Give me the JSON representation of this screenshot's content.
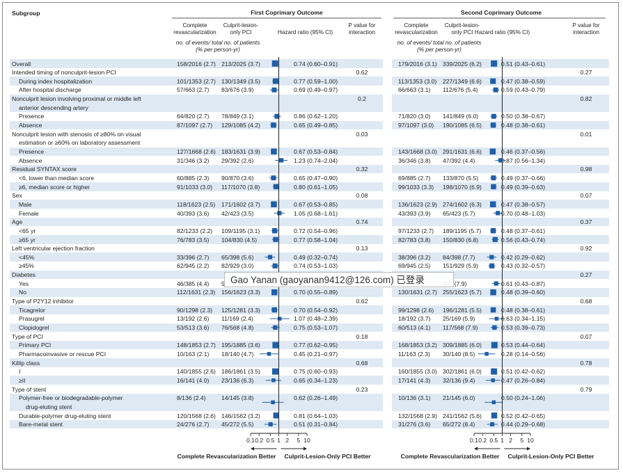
{
  "headers": {
    "subgroup": "Subgroup",
    "first_title": "First Coprimary Outcome",
    "second_title": "Second Coprimary Outcome",
    "complete_rev": [
      "Complete",
      "revascularization"
    ],
    "culprit_only": [
      "Culprit-lesion-",
      "only PCI"
    ],
    "hazard_ratio": "Hazard ratio (95% CI)",
    "pvalue": [
      "P value for",
      "interaction"
    ],
    "events_note": [
      "no. of events/ total no. of patients",
      "(% per person-yr)"
    ]
  },
  "axis": {
    "ticks": [
      0.1,
      0.2,
      0.5,
      1,
      2,
      5,
      10
    ],
    "tick_labels": [
      "0.1",
      "0.2",
      "0.5",
      "1",
      "2",
      "5",
      "10"
    ],
    "left_label": "Complete Revascularization Better",
    "right_label": "Culprit-Lesion-Only PCI Better"
  },
  "rows": [
    {
      "label": [
        "Overall"
      ],
      "indent": false,
      "shaded": true,
      "first": {
        "cr": "158/2016 (2.7)",
        "co": "213/2025 (3.7)",
        "hr": "0.74 (0.60–0.91)",
        "est": 0.74,
        "lo": 0.6,
        "hi": 0.91,
        "w": 1
      },
      "second": {
        "cr": "179/2016 (3.1)",
        "co": "339/2025 (6.2)",
        "hr": "0.51 (0.43–0.61)",
        "est": 0.51,
        "lo": 0.43,
        "hi": 0.61,
        "w": 1
      }
    },
    {
      "label": [
        "Intended timing of nonculprit-lesion PCI"
      ],
      "indent": false,
      "shaded": false,
      "p1": "0.62",
      "p2": "0.27"
    },
    {
      "label": [
        "During index hospitalization"
      ],
      "indent": true,
      "shaded": true,
      "first": {
        "cr": "101/1353 (2.7)",
        "co": "130/1349 (3.5)",
        "hr": "0.77 (0.59–1.00)",
        "est": 0.77,
        "lo": 0.59,
        "hi": 1.0,
        "w": 0.8
      },
      "second": {
        "cr": "113/1353 (3.0)",
        "co": "227/1349 (6.6)",
        "hr": "0.47 (0.38–0.59)",
        "est": 0.47,
        "lo": 0.38,
        "hi": 0.59,
        "w": 0.8
      }
    },
    {
      "label": [
        "After hospital discharge"
      ],
      "indent": true,
      "shaded": false,
      "first": {
        "cr": "57/663 (2.7)",
        "co": "83/676 (3.9)",
        "hr": "0.69 (0.49–0.97)",
        "est": 0.69,
        "lo": 0.49,
        "hi": 0.97,
        "w": 0.6
      },
      "second": {
        "cr": "66/663 (3.1)",
        "co": "112/676 (5.4)",
        "hr": "0.59 (0.43–0.79)",
        "est": 0.59,
        "lo": 0.43,
        "hi": 0.79,
        "w": 0.6
      }
    },
    {
      "label": [
        "Nonculprit lesion involving proximal or middle left",
        "anterior descending artery"
      ],
      "indent": false,
      "shaded": true,
      "p1": "0.2",
      "p2": "0.82"
    },
    {
      "label": [
        "Presence"
      ],
      "indent": true,
      "shaded": false,
      "first": {
        "cr": "64/820 (2.7)",
        "co": "78/849 (3.1)",
        "hr": "0.86 (0.62–1.20)",
        "est": 0.86,
        "lo": 0.62,
        "hi": 1.2,
        "w": 0.6
      },
      "second": {
        "cr": "71/820 (3.0)",
        "co": "141/849 (6.0)",
        "hr": "0.50 (0.38–0.67)",
        "est": 0.5,
        "lo": 0.38,
        "hi": 0.67,
        "w": 0.6
      }
    },
    {
      "label": [
        "Absence"
      ],
      "indent": true,
      "shaded": true,
      "first": {
        "cr": "87/1097 (2.7)",
        "co": "129/1085 (4.2)",
        "hr": "0.65 (0.49–0.85)",
        "est": 0.65,
        "lo": 0.49,
        "hi": 0.85,
        "w": 0.7
      },
      "second": {
        "cr": "97/1097 (3.0)",
        "co": "190/1085 (6.5)",
        "hr": "0.48 (0.38–0.61)",
        "est": 0.48,
        "lo": 0.38,
        "hi": 0.61,
        "w": 0.7
      }
    },
    {
      "label": [
        "Nonculprit lesion with stenosis of ≥80% on visual",
        "estimation or ≥60% on laboratory assessment"
      ],
      "indent": false,
      "shaded": false,
      "p1": "0.03",
      "p2": "0.01"
    },
    {
      "label": [
        "Presence"
      ],
      "indent": true,
      "shaded": true,
      "first": {
        "cr": "127/1668 (2.6)",
        "co": "183/1631 (3.9)",
        "hr": "0.67 (0.53–0.84)",
        "est": 0.67,
        "lo": 0.53,
        "hi": 0.84,
        "w": 0.9
      },
      "second": {
        "cr": "143/1668 (3.0)",
        "co": "291/1631 (6.6)",
        "hr": "0.46 (0.37–0.56)",
        "est": 0.46,
        "lo": 0.37,
        "hi": 0.56,
        "w": 0.9
      }
    },
    {
      "label": [
        "Absence"
      ],
      "indent": true,
      "shaded": false,
      "first": {
        "cr": "31/346 (3.2)",
        "co": "29/392 (2.6)",
        "hr": "1.23 (0.74–2.04)",
        "est": 1.23,
        "lo": 0.74,
        "hi": 2.04,
        "w": 0.45
      },
      "second": {
        "cr": "36/346 (3.8)",
        "co": "47/392 (4.4)",
        "hr": "0.87 (0.56–1.34)",
        "est": 0.87,
        "lo": 0.56,
        "hi": 1.34,
        "w": 0.45
      }
    },
    {
      "label": [
        "Residual SYNTAX score"
      ],
      "indent": false,
      "shaded": true,
      "p1": "0.32",
      "p2": "0.98"
    },
    {
      "label": [
        "<6, lower than median score"
      ],
      "indent": true,
      "shaded": false,
      "first": {
        "cr": "60/885 (2.3)",
        "co": "90/870 (3.6)",
        "hr": "0.65 (0.47–0.90)",
        "est": 0.65,
        "lo": 0.47,
        "hi": 0.9,
        "w": 0.6
      },
      "second": {
        "cr": "69/885 (2.7)",
        "co": "133/870 (5.5)",
        "hr": "0.49 (0.37–0.66)",
        "est": 0.49,
        "lo": 0.37,
        "hi": 0.66,
        "w": 0.6
      }
    },
    {
      "label": [
        "≥6, median score or higher"
      ],
      "indent": true,
      "shaded": true,
      "first": {
        "cr": "91/1033 (3.0)",
        "co": "117/1070 (3.8)",
        "hr": "0.80 (0.61–1.05)",
        "est": 0.8,
        "lo": 0.61,
        "hi": 1.05,
        "w": 0.7
      },
      "second": {
        "cr": "99/1033 (3.3)",
        "co": "198/1070 (6.9)",
        "hr": "0.49 (0.39–0.63)",
        "est": 0.49,
        "lo": 0.39,
        "hi": 0.63,
        "w": 0.7
      }
    },
    {
      "label": [
        "Sex"
      ],
      "indent": false,
      "shaded": false,
      "p1": "0.08",
      "p2": "0.07"
    },
    {
      "label": [
        "Male"
      ],
      "indent": true,
      "shaded": true,
      "first": {
        "cr": "118/1623 (2.5)",
        "co": "171/1602 (3.7)",
        "hr": "0.67 (0.53–0.85)",
        "est": 0.67,
        "lo": 0.53,
        "hi": 0.85,
        "w": 0.9
      },
      "second": {
        "cr": "136/1623 (2.9)",
        "co": "274/1602 (6.3)",
        "hr": "0.47 (0.38–0.57)",
        "est": 0.47,
        "lo": 0.38,
        "hi": 0.57,
        "w": 0.9
      }
    },
    {
      "label": [
        "Female"
      ],
      "indent": true,
      "shaded": false,
      "first": {
        "cr": "40/393 (3.6)",
        "co": "42/423 (3.5)",
        "hr": "1.05 (0.68–1.61)",
        "est": 1.05,
        "lo": 0.68,
        "hi": 1.61,
        "w": 0.45
      },
      "second": {
        "cr": "43/393 (3.9)",
        "co": "65/423 (5.7)",
        "hr": "0.70 (0.48–1.03)",
        "est": 0.7,
        "lo": 0.48,
        "hi": 1.03,
        "w": 0.45
      }
    },
    {
      "label": [
        "Age"
      ],
      "indent": false,
      "shaded": true,
      "p1": "0.74",
      "p2": "0.37"
    },
    {
      "label": [
        "<65 yr"
      ],
      "indent": true,
      "shaded": false,
      "first": {
        "cr": "82/1233 (2.2)",
        "co": "109/1195 (3.1)",
        "hr": "0.72 (0.54–0.96)",
        "est": 0.72,
        "lo": 0.54,
        "hi": 0.96,
        "w": 0.7
      },
      "second": {
        "cr": "97/1233 (2.7)",
        "co": "189/1195 (5.7)",
        "hr": "0.48 (0.37–0.61)",
        "est": 0.48,
        "lo": 0.37,
        "hi": 0.61,
        "w": 0.7
      }
    },
    {
      "label": [
        "≥65 yr"
      ],
      "indent": true,
      "shaded": true,
      "first": {
        "cr": "76/783 (3.5)",
        "co": "104/830 (4.5)",
        "hr": "0.77 (0.58–1.04)",
        "est": 0.77,
        "lo": 0.58,
        "hi": 1.04,
        "w": 0.65
      },
      "second": {
        "cr": "82/783 (3.8)",
        "co": "150/830 (6.8)",
        "hr": "0.56 (0.43–0.74)",
        "est": 0.56,
        "lo": 0.43,
        "hi": 0.74,
        "w": 0.65
      }
    },
    {
      "label": [
        "Left ventricular ejection fraction"
      ],
      "indent": false,
      "shaded": false,
      "p1": "0.13",
      "p2": "0.92"
    },
    {
      "label": [
        "<45%"
      ],
      "indent": true,
      "shaded": true,
      "first": {
        "cr": "33/396 (2.7)",
        "co": "65/398 (5.6)",
        "hr": "0.49 (0.32–0.74)",
        "est": 0.49,
        "lo": 0.32,
        "hi": 0.74,
        "w": 0.45
      },
      "second": {
        "cr": "38/396 (3.2)",
        "co": "84/398 (7.7)",
        "hr": "0.42 (0.29–0.62)",
        "est": 0.42,
        "lo": 0.29,
        "hi": 0.62,
        "w": 0.45
      }
    },
    {
      "label": [
        "≥45%"
      ],
      "indent": true,
      "shaded": false,
      "first": {
        "cr": "62/945 (2.2)",
        "co": "82/929 (3.0)",
        "hr": "0.74 (0.53–1.03)",
        "est": 0.74,
        "lo": 0.53,
        "hi": 1.03,
        "w": 0.65
      },
      "second": {
        "cr": "69/945 (2.5)",
        "co": "151/929 (5.9)",
        "hr": "0.43 (0.32–0.57)",
        "est": 0.43,
        "lo": 0.32,
        "hi": 0.57,
        "w": 0.65
      }
    },
    {
      "label": [
        "Diabetes"
      ],
      "indent": false,
      "shaded": true,
      "p1": "",
      "p2": "0.27"
    },
    {
      "label": [
        "Yes"
      ],
      "indent": true,
      "shaded": false,
      "first": {
        "cr": "46/385 (4.4)",
        "co": "5",
        "hr": "",
        "est": null,
        "lo": null,
        "hi": null,
        "w": 0.45
      },
      "second": {
        "cr": "",
        "co": "402 (7.9)",
        "hr": "0.61 (0.43–0.87)",
        "est": 0.61,
        "lo": 0.43,
        "hi": 0.87,
        "w": 0.45
      }
    },
    {
      "label": [
        "No"
      ],
      "indent": true,
      "shaded": true,
      "first": {
        "cr": "112/1631 (2.3)",
        "co": "156/1623 (3.3)",
        "hr": "0.70 (0.55–0.89)",
        "est": 0.7,
        "lo": 0.55,
        "hi": 0.89,
        "w": 0.9
      },
      "second": {
        "cr": "130/1631 (2.7)",
        "co": "255/1623 (5.7)",
        "hr": "0.48 (0.39–0.60)",
        "est": 0.48,
        "lo": 0.39,
        "hi": 0.6,
        "w": 0.9
      }
    },
    {
      "label": [
        "Type of P2Y12 inhibitor"
      ],
      "indent": false,
      "shaded": false,
      "p1": "0.62",
      "p2": "0.68"
    },
    {
      "label": [
        "Ticagrelor"
      ],
      "indent": true,
      "shaded": true,
      "first": {
        "cr": "90/1298 (2.3)",
        "co": "125/1281 (3.3)",
        "hr": "0.70 (0.54–0.92)",
        "est": 0.7,
        "lo": 0.54,
        "hi": 0.92,
        "w": 0.7
      },
      "second": {
        "cr": "99/1298 (2.6)",
        "co": "196/1281 (5.5)",
        "hr": "0.48 (0.38–0.61)",
        "est": 0.48,
        "lo": 0.38,
        "hi": 0.61,
        "w": 0.7
      }
    },
    {
      "label": [
        "Prasugrel"
      ],
      "indent": true,
      "shaded": false,
      "first": {
        "cr": "13/192 (2.6)",
        "co": "11/169 (2.4)",
        "hr": "1.07 (0.48–2.39)",
        "est": 1.07,
        "lo": 0.48,
        "hi": 2.39,
        "w": 0.3
      },
      "second": {
        "cr": "18/192 (3.7)",
        "co": "25/169 (5.9)",
        "hr": "0.63 (0.34–1.15)",
        "est": 0.63,
        "lo": 0.34,
        "hi": 1.15,
        "w": 0.3
      }
    },
    {
      "label": [
        "Clopidogrel"
      ],
      "indent": true,
      "shaded": true,
      "first": {
        "cr": "53/513 (3.6)",
        "co": "76/568 (4.8)",
        "hr": "0.75 (0.53–1.07)",
        "est": 0.75,
        "lo": 0.53,
        "hi": 1.07,
        "w": 0.5
      },
      "second": {
        "cr": "60/513 (4.1)",
        "co": "117/568 (7.9)",
        "hr": "0.53 (0.39–0.73)",
        "est": 0.53,
        "lo": 0.39,
        "hi": 0.73,
        "w": 0.5
      }
    },
    {
      "label": [
        "Type of PCI"
      ],
      "indent": false,
      "shaded": false,
      "p1": "0.18",
      "p2": "0.07"
    },
    {
      "label": [
        "Primary PCI"
      ],
      "indent": true,
      "shaded": true,
      "first": {
        "cr": "148/1853 (2.7)",
        "co": "195/1885 (3.6)",
        "hr": "0.77 (0.62–0.95)",
        "est": 0.77,
        "lo": 0.62,
        "hi": 0.95,
        "w": 1
      },
      "second": {
        "cr": "168/1853 (3.2)",
        "co": "309/1885 (6.0)",
        "hr": "0.53 (0.44–0.64)",
        "est": 0.53,
        "lo": 0.44,
        "hi": 0.64,
        "w": 1
      }
    },
    {
      "label": [
        "Pharmacoinvasive or rescue PCI"
      ],
      "indent": true,
      "shaded": false,
      "first": {
        "cr": "10/163 (2.1)",
        "co": "18/140 (4.7)",
        "hr": "0.45 (0.21–0.97)",
        "est": 0.45,
        "lo": 0.21,
        "hi": 0.97,
        "w": 0.3
      },
      "second": {
        "cr": "11/163 (2.3)",
        "co": "30/140 (8.5)",
        "hr": "0.28 (0.14–0.56)",
        "est": 0.28,
        "lo": 0.14,
        "hi": 0.56,
        "w": 0.3
      }
    },
    {
      "label": [
        "Killip class"
      ],
      "indent": false,
      "shaded": true,
      "p1": "0.68",
      "p2": "0.78"
    },
    {
      "label": [
        "I"
      ],
      "indent": true,
      "shaded": false,
      "first": {
        "cr": "140/1855 (2.6)",
        "co": "186/1861 (3.5)",
        "hr": "0.75 (0.60–0.93)",
        "est": 0.75,
        "lo": 0.6,
        "hi": 0.93,
        "w": 1
      },
      "second": {
        "cr": "160/1855 (3.0)",
        "co": "302/1861 (6.0)",
        "hr": "0.51 (0.42–0.62)",
        "est": 0.51,
        "lo": 0.42,
        "hi": 0.62,
        "w": 1
      }
    },
    {
      "label": [
        "≥II"
      ],
      "indent": true,
      "shaded": true,
      "first": {
        "cr": "16/141 (4.0)",
        "co": "23/136 (6.3)",
        "hr": "0.65 (0.34–1.23)",
        "est": 0.65,
        "lo": 0.34,
        "hi": 1.23,
        "w": 0.3
      },
      "second": {
        "cr": "17/141 (4.3)",
        "co": "32/136 (9.4)",
        "hr": "0.47 (0.26–0.84)",
        "est": 0.47,
        "lo": 0.26,
        "hi": 0.84,
        "w": 0.3
      }
    },
    {
      "label": [
        "Type of stent"
      ],
      "indent": false,
      "shaded": false,
      "p1": "0.23",
      "p2": "0.79"
    },
    {
      "label": [
        "Polymer-free or biodegradable-polymer",
        "drug-eluting stent"
      ],
      "indent": true,
      "shaded": true,
      "first": {
        "cr": "8/136 (2.4)",
        "co": "14/145 (3.8)",
        "hr": "0.62 (0.26–1.49)",
        "est": 0.62,
        "lo": 0.26,
        "hi": 1.49,
        "w": 0.3
      },
      "second": {
        "cr": "10/136 (3.1)",
        "co": "21/145 (6.0)",
        "hr": "0.50 (0.24–1.06)",
        "est": 0.5,
        "lo": 0.24,
        "hi": 1.06,
        "w": 0.3
      }
    },
    {
      "label": [
        "Durable-polymer drug-eluting stent"
      ],
      "indent": true,
      "shaded": false,
      "first": {
        "cr": "120/1568 (2.6)",
        "co": "146/1562 (3.2)",
        "hr": "0.81 (0.64–1.03)",
        "est": 0.81,
        "lo": 0.64,
        "hi": 1.03,
        "w": 0.9
      },
      "second": {
        "cr": "132/1568 (2.9)",
        "co": "241/1562 (5.6)",
        "hr": "0.52 (0.42–0.65)",
        "est": 0.52,
        "lo": 0.42,
        "hi": 0.65,
        "w": 0.9
      }
    },
    {
      "label": [
        "Bare-metal stent"
      ],
      "indent": true,
      "shaded": true,
      "first": {
        "cr": "24/276 (2.7)",
        "co": "45/272 (5.5)",
        "hr": "0.51 (0.31–0.84)",
        "est": 0.51,
        "lo": 0.31,
        "hi": 0.84,
        "w": 0.4
      },
      "second": {
        "cr": "31/276 (3.6)",
        "co": "65/272 (8.4)",
        "hr": "0.44 (0.29–0.68)",
        "est": 0.44,
        "lo": 0.29,
        "hi": 0.68,
        "w": 0.4
      }
    }
  ],
  "overlay": {
    "text": "Gao Yanan (gaoyanan9412@126.com) 已登录"
  },
  "colors": {
    "marker": "#1f5fa8",
    "row_shade": "#dfe9f4",
    "text": "#222222"
  }
}
